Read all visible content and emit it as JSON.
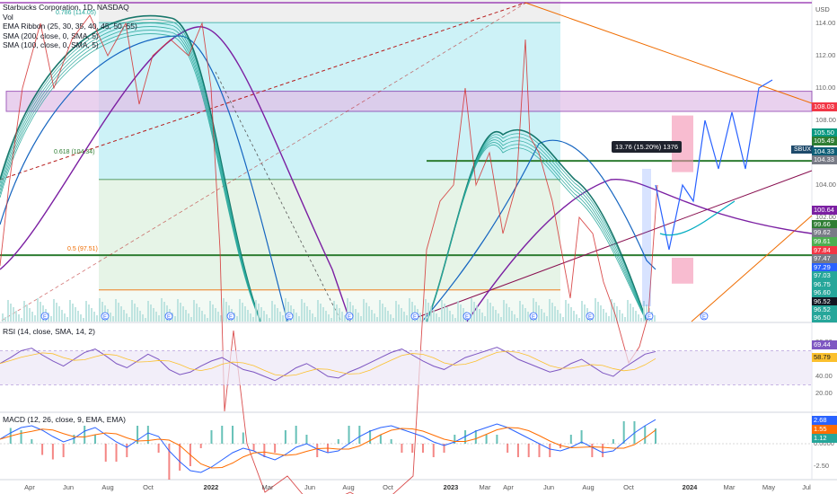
{
  "chart_data": {
    "type": "line",
    "symbol": "SBUX",
    "title": "Starbucks Corporation, 1D, NASDAQ",
    "currency": "USD",
    "legend": {
      "vol": "Vol",
      "ema_ribbon": "EMA Ribbon (25, 30, 35, 40, 45, 50, 55)",
      "sma200": "SMA (200, close, 0, SMA, 5)",
      "sma100": "SMA (100, close, 0, SMA, 5)"
    },
    "y_ticks": [
      "114.00",
      "112.00",
      "110.00",
      "108.00",
      "106.00",
      "104.00",
      "102.00",
      "100.00",
      "98.00",
      "96.00"
    ],
    "price_labels": [
      {
        "text": "108.03",
        "color": "#f23645"
      },
      {
        "text": "105.50",
        "color": "#089981"
      },
      {
        "text": "105.49",
        "color": "#2e7d32"
      },
      {
        "text": "104.33",
        "color": "#0d5e76"
      },
      {
        "text": "104.33",
        "color": "#787b86"
      },
      {
        "text": "100.64",
        "color": "#7b1fa2"
      },
      {
        "text": "99.66",
        "color": "#2e7d32"
      },
      {
        "text": "99.62",
        "color": "#787b86"
      },
      {
        "text": "99.61",
        "color": "#4caf50"
      },
      {
        "text": "97.84",
        "color": "#f23645"
      },
      {
        "text": "97.47",
        "color": "#787b86"
      },
      {
        "text": "97.29",
        "color": "#2962ff"
      },
      {
        "text": "97.03",
        "color": "#26a69a"
      },
      {
        "text": "96.75",
        "color": "#26a69a"
      },
      {
        "text": "96.60",
        "color": "#26a69a"
      },
      {
        "text": "96.52",
        "color": "#131722"
      },
      {
        "text": "96.52",
        "color": "#26a69a"
      },
      {
        "text": "96.50",
        "color": "#26a69a"
      }
    ],
    "fib_levels": [
      {
        "label": "0.786 (114.05)",
        "value": 114.05
      },
      {
        "label": "0.618 (104.34)",
        "value": 104.34
      },
      {
        "label": "0.5 (97.51)",
        "value": 97.51
      }
    ],
    "measure_label": "13.76 (15.20%) 1376",
    "ticker_label": "SBUX",
    "x_ticks": [
      {
        "label": "Apr",
        "bold": false
      },
      {
        "label": "Jun",
        "bold": false
      },
      {
        "label": "Aug",
        "bold": false
      },
      {
        "label": "Oct",
        "bold": false
      },
      {
        "label": "2022",
        "bold": true
      },
      {
        "label": "Mar",
        "bold": false
      },
      {
        "label": "Jun",
        "bold": false
      },
      {
        "label": "Aug",
        "bold": false
      },
      {
        "label": "Oct",
        "bold": false
      },
      {
        "label": "2023",
        "bold": true
      },
      {
        "label": "Mar",
        "bold": false
      },
      {
        "label": "Apr",
        "bold": false
      },
      {
        "label": "Jun",
        "bold": false
      },
      {
        "label": "Aug",
        "bold": false
      },
      {
        "label": "Oct",
        "bold": false
      },
      {
        "label": "2024",
        "bold": true
      },
      {
        "label": "Mar",
        "bold": false
      },
      {
        "label": "May",
        "bold": false
      },
      {
        "label": "Jul",
        "bold": false
      }
    ],
    "price_series": [
      [
        0,
        99
      ],
      [
        10,
        104
      ],
      [
        25,
        110
      ],
      [
        45,
        114
      ],
      [
        60,
        110
      ],
      [
        80,
        113
      ],
      [
        100,
        114.5
      ],
      [
        120,
        112
      ],
      [
        140,
        114
      ],
      [
        155,
        109
      ],
      [
        170,
        112
      ],
      [
        190,
        113
      ],
      [
        210,
        112
      ],
      [
        225,
        114
      ],
      [
        235,
        110
      ],
      [
        245,
        100
      ],
      [
        250,
        90
      ],
      [
        260,
        95
      ],
      [
        275,
        88
      ],
      [
        295,
        85
      ],
      [
        320,
        86
      ],
      [
        350,
        84
      ],
      [
        390,
        85
      ],
      [
        420,
        84
      ],
      [
        460,
        86
      ],
      [
        475,
        100
      ],
      [
        490,
        103
      ],
      [
        505,
        104
      ],
      [
        518,
        110
      ],
      [
        530,
        104
      ],
      [
        545,
        106
      ],
      [
        560,
        101
      ],
      [
        575,
        104
      ],
      [
        585,
        113
      ],
      [
        590,
        107
      ],
      [
        600,
        106
      ],
      [
        615,
        103
      ],
      [
        625,
        100
      ],
      [
        635,
        97
      ],
      [
        645,
        102
      ],
      [
        660,
        101
      ],
      [
        672,
        98
      ],
      [
        685,
        96
      ],
      [
        700,
        93
      ],
      [
        712,
        94
      ],
      [
        722,
        96
      ],
      [
        732,
        104
      ]
    ],
    "projection_path": [
      [
        730,
        104
      ],
      [
        745,
        100
      ],
      [
        760,
        104
      ],
      [
        772,
        103
      ],
      [
        785,
        108
      ],
      [
        800,
        105
      ],
      [
        815,
        108.5
      ],
      [
        830,
        105
      ],
      [
        845,
        110
      ],
      [
        860,
        110.5
      ]
    ],
    "rsi": {
      "title": "RSI (14, close, SMA, 14, 2)",
      "last_rsi": "69.44",
      "last_sma": "58.79",
      "y_ticks": [
        "80.00",
        "60.00",
        "40.00",
        "20.00"
      ],
      "rsi_values": [
        55,
        62,
        70,
        73,
        65,
        58,
        52,
        60,
        68,
        72,
        64,
        55,
        50,
        58,
        66,
        60,
        48,
        42,
        45,
        52,
        58,
        62,
        55,
        48,
        45,
        40,
        35,
        42,
        50,
        55,
        48,
        40,
        38,
        45,
        50,
        56,
        62,
        68,
        72,
        65,
        58,
        52,
        48,
        55,
        62,
        66,
        70,
        74,
        68,
        60,
        55,
        50,
        45,
        48,
        55,
        60,
        52,
        44,
        40,
        50,
        58,
        66,
        69
      ]
    },
    "macd": {
      "title": "MACD (12, 26, close, 9, EMA, EMA)",
      "labels": [
        {
          "text": "2.68",
          "color": "#2962ff"
        },
        {
          "text": "1.55",
          "color": "#ff6d00"
        },
        {
          "text": "1.12",
          "color": "#26a69a"
        }
      ],
      "y_ticks": [
        "2.50",
        "0.0000",
        "-2.50"
      ],
      "macd_values": [
        0.5,
        1.2,
        1.8,
        2.0,
        1.5,
        0.8,
        0.2,
        0.6,
        1.4,
        1.8,
        1.0,
        0.2,
        -0.4,
        0.4,
        1.2,
        0.8,
        -0.8,
        -2.0,
        -3.0,
        -3.2,
        -2.6,
        -1.8,
        -1.0,
        -0.5,
        -0.8,
        -1.4,
        -1.8,
        -1.2,
        -0.4,
        0.0,
        -0.6,
        -1.0,
        -0.8,
        0.0,
        0.8,
        1.4,
        1.8,
        2.0,
        1.6,
        1.2,
        0.8,
        0.2,
        -0.2,
        0.2,
        0.8,
        1.4,
        1.8,
        2.2,
        1.8,
        1.2,
        0.6,
        0.0,
        -0.6,
        -0.8,
        -0.4,
        0.2,
        -0.4,
        -1.0,
        -0.8,
        0.2,
        1.2,
        2.0,
        2.68
      ]
    }
  }
}
